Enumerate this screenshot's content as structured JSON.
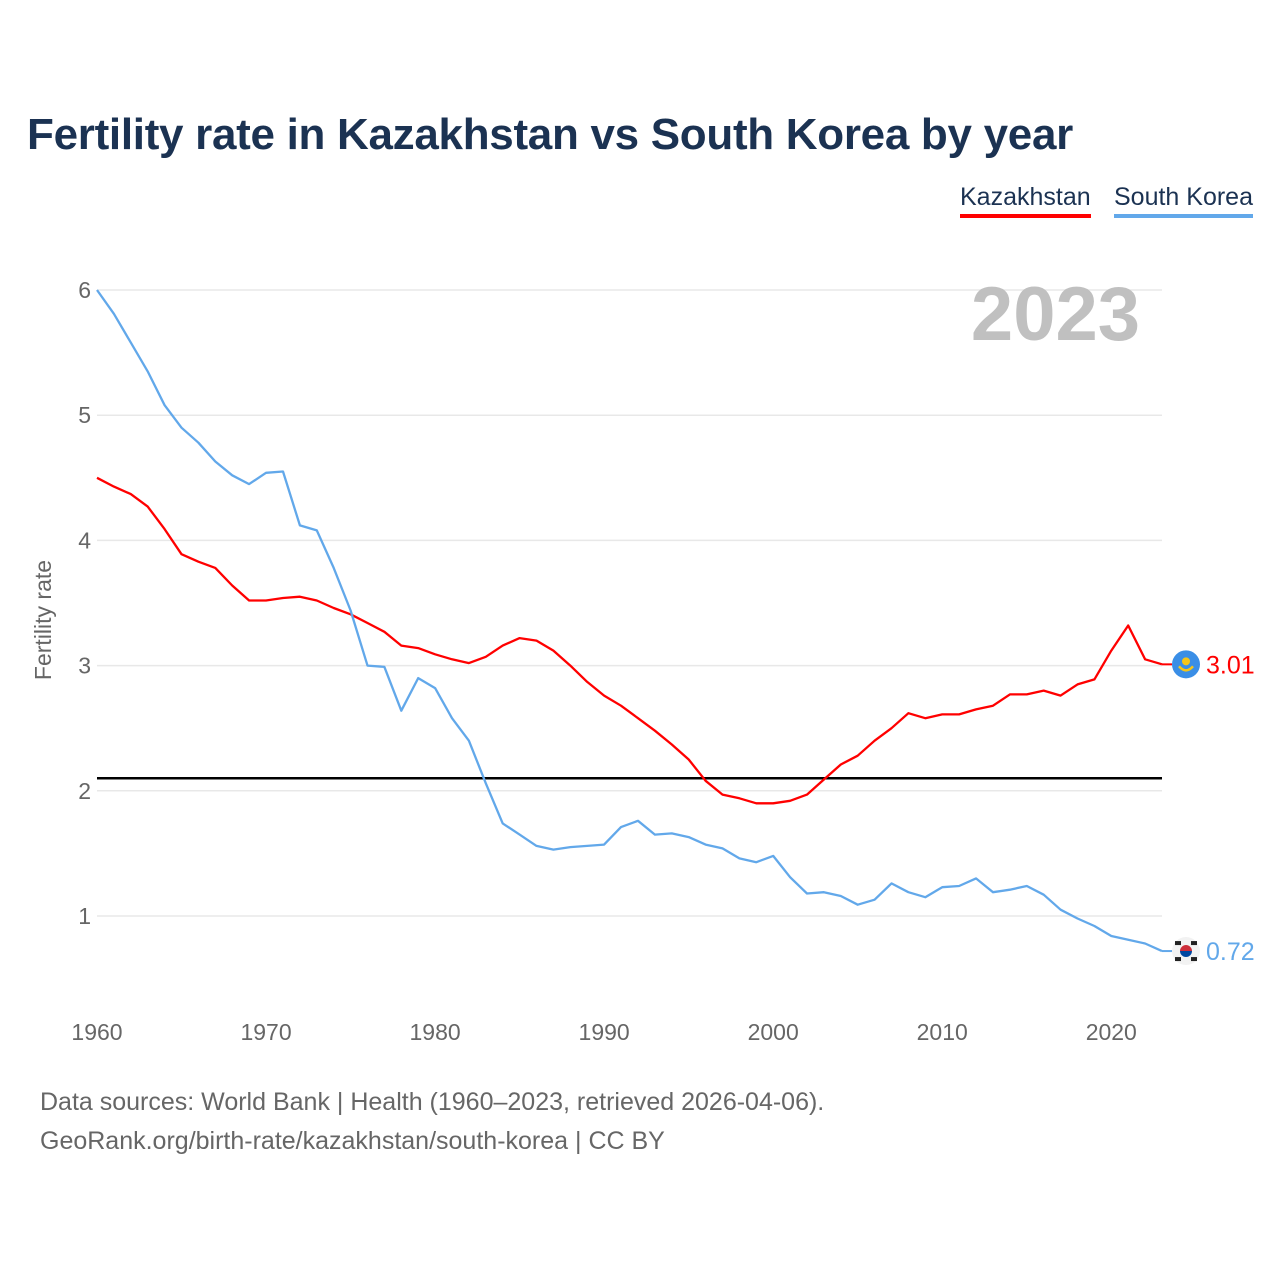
{
  "chart_data": {
    "type": "line",
    "title": "Fertility rate in Kazakhstan vs South Korea by year",
    "xlabel": "",
    "ylabel": "Fertility rate",
    "xlim": [
      1960,
      2023
    ],
    "ylim": [
      0.5,
      6
    ],
    "x_ticks": [
      "1960",
      "1970",
      "1980",
      "1990",
      "2000",
      "2010",
      "2020"
    ],
    "y_ticks": [
      "1",
      "2",
      "3",
      "4",
      "5",
      "6"
    ],
    "grid": true,
    "legend_position": "top-right",
    "year_label": "2023",
    "reference_line": 2.1,
    "x": [
      1960,
      1961,
      1962,
      1963,
      1964,
      1965,
      1966,
      1967,
      1968,
      1969,
      1970,
      1971,
      1972,
      1973,
      1974,
      1975,
      1976,
      1977,
      1978,
      1979,
      1980,
      1981,
      1982,
      1983,
      1984,
      1985,
      1986,
      1987,
      1988,
      1989,
      1990,
      1991,
      1992,
      1993,
      1994,
      1995,
      1996,
      1997,
      1998,
      1999,
      2000,
      2001,
      2002,
      2003,
      2004,
      2005,
      2006,
      2007,
      2008,
      2009,
      2010,
      2011,
      2012,
      2013,
      2014,
      2015,
      2016,
      2017,
      2018,
      2019,
      2020,
      2021,
      2022,
      2023
    ],
    "series": [
      {
        "name": "Kazakhstan",
        "color": "#ff0000",
        "end_label": "3.01",
        "values": [
          4.5,
          4.43,
          4.37,
          4.27,
          4.09,
          3.89,
          3.83,
          3.78,
          3.64,
          3.52,
          3.52,
          3.54,
          3.55,
          3.52,
          3.46,
          3.41,
          3.34,
          3.27,
          3.16,
          3.14,
          3.09,
          3.05,
          3.02,
          3.07,
          3.16,
          3.22,
          3.2,
          3.12,
          3.0,
          2.87,
          2.76,
          2.68,
          2.58,
          2.48,
          2.37,
          2.25,
          2.08,
          1.97,
          1.94,
          1.9,
          1.9,
          1.92,
          1.97,
          2.09,
          2.21,
          2.28,
          2.4,
          2.5,
          2.62,
          2.58,
          2.61,
          2.61,
          2.65,
          2.68,
          2.77,
          2.77,
          2.8,
          2.76,
          2.85,
          2.89,
          3.12,
          3.32,
          3.05,
          3.01
        ]
      },
      {
        "name": "South Korea",
        "color": "#62a8ea",
        "end_label": "0.72",
        "values": [
          6.0,
          5.81,
          5.58,
          5.35,
          5.08,
          4.9,
          4.78,
          4.63,
          4.52,
          4.45,
          4.54,
          4.55,
          4.12,
          4.08,
          3.78,
          3.44,
          3.0,
          2.99,
          2.64,
          2.9,
          2.82,
          2.58,
          2.4,
          2.06,
          1.74,
          1.65,
          1.56,
          1.53,
          1.55,
          1.56,
          1.57,
          1.71,
          1.76,
          1.65,
          1.66,
          1.63,
          1.57,
          1.54,
          1.46,
          1.43,
          1.48,
          1.31,
          1.18,
          1.19,
          1.16,
          1.09,
          1.13,
          1.26,
          1.19,
          1.15,
          1.23,
          1.24,
          1.3,
          1.19,
          1.21,
          1.24,
          1.17,
          1.05,
          0.98,
          0.92,
          0.84,
          0.81,
          0.78,
          0.72
        ]
      }
    ]
  },
  "legend": {
    "kazakhstan": "Kazakhstan",
    "south_korea": "South Korea"
  },
  "source": {
    "line1": "Data sources: World Bank | Health (1960–2023, retrieved 2026-04-06).",
    "line2": "GeoRank.org/birth-rate/kazakhstan/south-korea | CC BY"
  }
}
